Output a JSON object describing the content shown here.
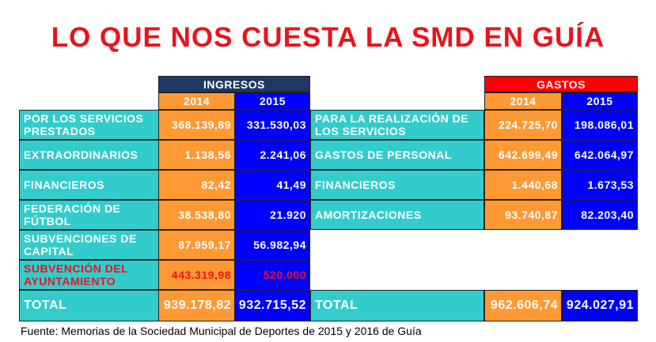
{
  "title": "LO QUE NOS CUESTA LA SMD EN GUÍA",
  "ingresos": {
    "header": "INGRESOS",
    "years": [
      "2014",
      "2015"
    ],
    "rows": [
      [
        "POR LOS SERVICIOS PRESTADOS",
        "368.139,89",
        "331.530,03"
      ],
      [
        "EXTRAORDINARIOS",
        "1.138,56",
        "2.241,06"
      ],
      [
        "FINANCIEROS",
        "82,42",
        "41,49"
      ],
      [
        "FEDERACIÓN DE FÚTBOL",
        "38.538,80",
        "21.920"
      ],
      [
        "SUBVENCIONES DE CAPITAL",
        "87.959,17",
        "56.982,94"
      ],
      [
        "SUBVENCIÓN DEL AYUNTAMIENTO",
        "443.319,98",
        "520.000"
      ]
    ],
    "total": [
      "TOTAL",
      "939.178,82",
      "932.715,52"
    ]
  },
  "gastos": {
    "header": "GASTOS",
    "years": [
      "2014",
      "2015"
    ],
    "rows": [
      [
        "PARA LA REALIZACIÓN DE LOS SERVICIOS",
        "224.725,70",
        "198.086,01"
      ],
      [
        "GASTOS DE PERSONAL",
        "642.699,49",
        "642.064,97"
      ],
      [
        "FINANCIEROS",
        "1.440,68",
        "1.673,53"
      ],
      [
        "AMORTIZACIONES",
        "93.740,87",
        "82.203,40"
      ]
    ],
    "total": [
      "TOTAL",
      "962.606,74",
      "924.027,91"
    ]
  },
  "source": "Fuente: Memorias de la Sociedad Municipal de Deportes de 2015 y 2016 de Guía"
}
